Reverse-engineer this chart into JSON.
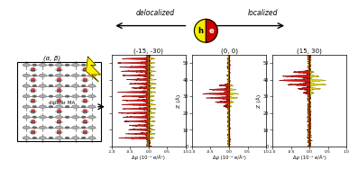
{
  "title_delocalized": "delocalized",
  "title_localized": "localized",
  "panel_titles": [
    "(-15, -30)",
    "(0, 0)",
    "(15, 30)"
  ],
  "ylabel": "Z (Å)",
  "xlabel": "Δρ (10⁻³ e/Å³)",
  "xlim": [
    -1.0,
    1.0
  ],
  "ylim": [
    0,
    55
  ],
  "yticks": [
    0,
    10,
    20,
    30,
    40,
    50
  ],
  "xticks": [
    -1.0,
    -0.5,
    0.0,
    0.5,
    1.0
  ],
  "xtick_labels": [
    "-1.0",
    "-0.5",
    "0.0",
    "0.5",
    "1.0"
  ],
  "crystal_label": "(α, β)",
  "arrow_label": "dipolar MA",
  "red_color": "#cc0000",
  "yellow_color": "#ddcc00",
  "maroon_line": "#880000",
  "olive_line": "#888800"
}
